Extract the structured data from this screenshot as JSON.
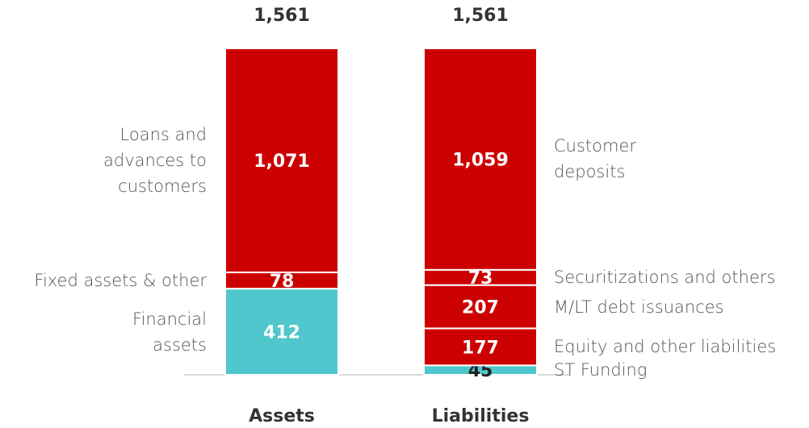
{
  "chart_data": {
    "type": "stacked_bar",
    "bars": [
      {
        "category": "Assets",
        "total": 1561,
        "total_label": "1,561",
        "segments": [
          {
            "name": "Financial assets",
            "value": 412,
            "color": "#4fc7cc"
          },
          {
            "name": "Fixed assets & other",
            "value": 78,
            "color": "#cc0000"
          },
          {
            "name": "Loans and advances to customers",
            "value": 1071,
            "value_label": "1,071",
            "color": "#cc0000"
          }
        ]
      },
      {
        "category": "Liabilities",
        "total": 1561,
        "total_label": "1,561",
        "segments": [
          {
            "name": "ST Funding",
            "value": 45,
            "color": "#4fc7cc"
          },
          {
            "name": "Equity and other liabilities",
            "value": 177,
            "color": "#cc0000"
          },
          {
            "name": "M/LT debt issuances",
            "value": 207,
            "color": "#cc0000"
          },
          {
            "name": "Securitizations and others",
            "value": 73,
            "color": "#cc0000"
          },
          {
            "name": "Customer deposits",
            "value": 1059,
            "value_label": "1,059",
            "color": "#cc0000"
          }
        ]
      }
    ]
  }
}
